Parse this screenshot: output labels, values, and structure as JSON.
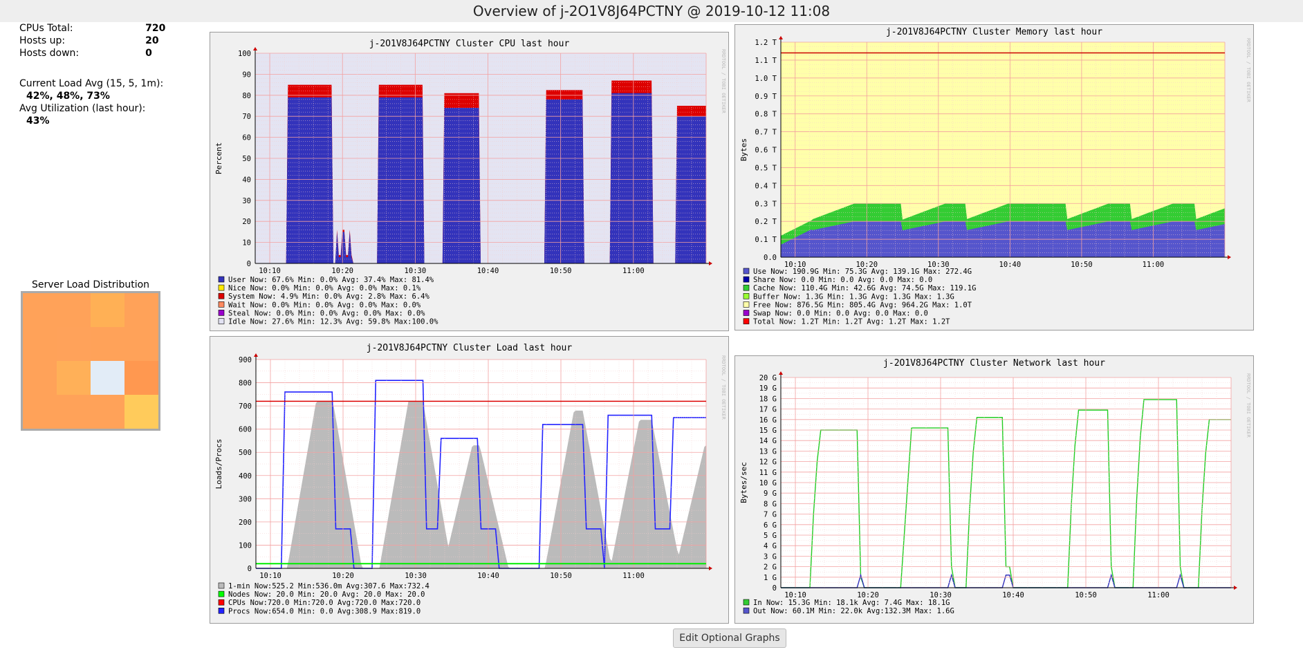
{
  "header": {
    "title": "Overview of j-2O1V8J64PCTNY @ 2019-10-12 11:08"
  },
  "stats": {
    "cpus_total_label": "CPUs Total:",
    "cpus_total": "720",
    "hosts_up_label": "Hosts up:",
    "hosts_up": "20",
    "hosts_down_label": "Hosts down:",
    "hosts_down": "0",
    "load_label": "Current Load Avg (15, 5, 1m):",
    "load_value": "42%, 48%, 73%",
    "util_label": "Avg Utilization (last hour):",
    "util_value": "43%"
  },
  "server_load": {
    "title": "Server Load Distribution",
    "cells": [
      "#ffa259",
      "#ffa259",
      "#ffb055",
      "#ffa259",
      "#ffa259",
      "#ffa25a",
      "#ffa259",
      "#ffa259",
      "#ffa259",
      "#ffb058",
      "#e2ecf7",
      "#ff9850",
      "#ffa259",
      "#ffa259",
      "#ffa259",
      "#ffcb5b"
    ]
  },
  "rrdtool_label": "RRDTOOL / TOBI OETIKER",
  "time_ticks": [
    "10:10",
    "10:20",
    "10:30",
    "10:40",
    "10:50",
    "11:00"
  ],
  "cpu_graph": {
    "title": "j-2O1V8J64PCTNY Cluster CPU last hour",
    "ylabel": "Percent",
    "yticks": [
      "0",
      "10",
      "20",
      "30",
      "40",
      "50",
      "60",
      "70",
      "80",
      "90",
      "100"
    ],
    "legend": [
      {
        "color": "#3333bb",
        "text": "User   Now: 67.6%  Min:  0.0%  Avg: 37.4%  Max: 81.4%"
      },
      {
        "color": "#ffea00",
        "text": "Nice   Now:  0.0%  Min:  0.0%  Avg:  0.0%  Max:  0.1%"
      },
      {
        "color": "#dd0000",
        "text": "System Now:  4.9%  Min:  0.0%  Avg:  2.8%  Max:  6.4%"
      },
      {
        "color": "#ff8a60",
        "text": "Wait   Now:  0.0%  Min:  0.0%  Avg:  0.0%  Max:  0.0%"
      },
      {
        "color": "#9900cc",
        "text": "Steal  Now:  0.0%  Min:  0.0%  Avg:  0.0%  Max:  0.0%"
      },
      {
        "color": "#e2e2f2",
        "text": "Idle   Now: 27.6%  Min: 12.3%  Avg: 59.8%  Max:100.0%"
      }
    ]
  },
  "memory_graph": {
    "title": "j-2O1V8J64PCTNY Cluster Memory last hour",
    "ylabel": "Bytes",
    "yticks": [
      "0.0",
      "0.1 T",
      "0.2 T",
      "0.3 T",
      "0.4 T",
      "0.5 T",
      "0.6 T",
      "0.7 T",
      "0.8 T",
      "0.9 T",
      "1.0 T",
      "1.1 T",
      "1.2 T"
    ],
    "legend": [
      {
        "color": "#5555cc",
        "text": "Use    Now: 190.9G  Min:  75.3G  Avg: 139.1G  Max: 272.4G"
      },
      {
        "color": "#0000aa",
        "text": "Share  Now:   0.0   Min:   0.0   Avg:   0.0   Max:   0.0"
      },
      {
        "color": "#33cc33",
        "text": "Cache  Now: 110.4G  Min:  42.6G  Avg:  74.5G  Max: 119.1G"
      },
      {
        "color": "#99ff33",
        "text": "Buffer Now:   1.3G  Min:   1.3G  Avg:   1.3G  Max:   1.3G"
      },
      {
        "color": "#ffffaa",
        "text": "Free   Now: 876.5G  Min: 805.4G  Avg: 964.2G  Max:   1.0T"
      },
      {
        "color": "#9900cc",
        "text": "Swap   Now:   0.0   Min:   0.0   Avg:   0.0   Max:   0.0"
      },
      {
        "color": "#ff0000",
        "text": "Total  Now:   1.2T  Min:   1.2T  Avg:   1.2T  Max:   1.2T"
      }
    ]
  },
  "load_graph": {
    "title": "j-2O1V8J64PCTNY Cluster Load last hour",
    "ylabel": "Loads/Procs",
    "yticks": [
      "0",
      "100",
      "200",
      "300",
      "400",
      "500",
      "600",
      "700",
      "800",
      "900"
    ],
    "legend": [
      {
        "color": "#bbbbbb",
        "text": "1-min  Now:525.2   Min:536.0m  Avg:307.6   Max:732.4"
      },
      {
        "color": "#00ff00",
        "text": "Nodes  Now: 20.0   Min: 20.0   Avg: 20.0   Max: 20.0"
      },
      {
        "color": "#ff0000",
        "text": "CPUs   Now:720.0   Min:720.0   Avg:720.0   Max:720.0"
      },
      {
        "color": "#2222ff",
        "text": "Procs  Now:654.0   Min:  0.0   Avg:308.9   Max:819.0"
      }
    ]
  },
  "network_graph": {
    "title": "j-2O1V8J64PCTNY Cluster Network last hour",
    "ylabel": "Bytes/sec",
    "yticks": [
      "0",
      "1 G",
      "2 G",
      "3 G",
      "4 G",
      "5 G",
      "6 G",
      "7 G",
      "8 G",
      "9 G",
      "10 G",
      "11 G",
      "12 G",
      "13 G",
      "14 G",
      "15 G",
      "16 G",
      "17 G",
      "18 G",
      "19 G",
      "20 G"
    ],
    "legend": [
      {
        "color": "#33cc33",
        "text": "In   Now: 15.3G  Min: 18.1k  Avg:   7.4G  Max:  18.1G"
      },
      {
        "color": "#5555cc",
        "text": "Out  Now: 60.1M  Min: 22.0k  Avg:132.3M  Max:   1.6G"
      }
    ]
  },
  "edit_button": "Edit Optional Graphs"
}
